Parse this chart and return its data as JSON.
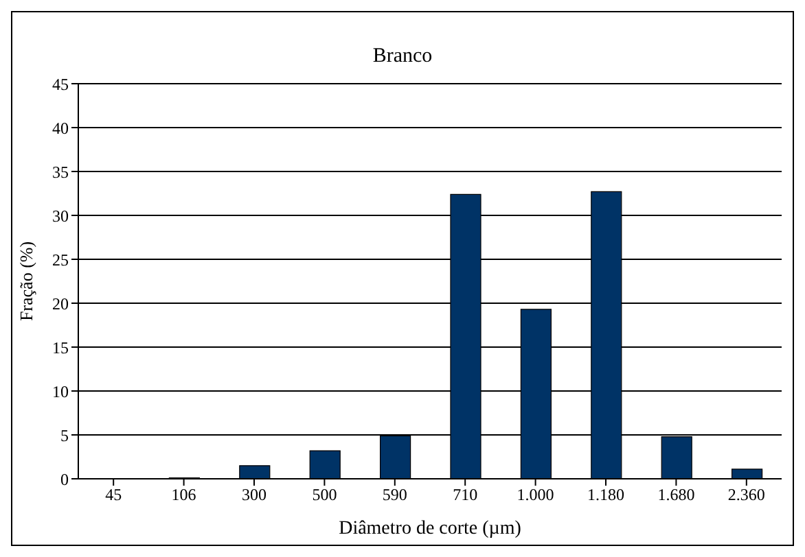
{
  "chart_data": {
    "type": "bar",
    "title": "Branco",
    "xlabel": "Diâmetro de corte (µm)",
    "ylabel": "Fração (%)",
    "categories": [
      "45",
      "106",
      "300",
      "500",
      "590",
      "710",
      "1.000",
      "1.180",
      "1.680",
      "2.360"
    ],
    "values": [
      0,
      0.1,
      1.5,
      3.2,
      4.9,
      32.4,
      19.3,
      32.7,
      4.8,
      1.1
    ],
    "color": "#003366",
    "ylim": [
      0,
      45
    ],
    "yticks": [
      0,
      5,
      10,
      15,
      20,
      25,
      30,
      35,
      40,
      45
    ],
    "grid": "y"
  }
}
